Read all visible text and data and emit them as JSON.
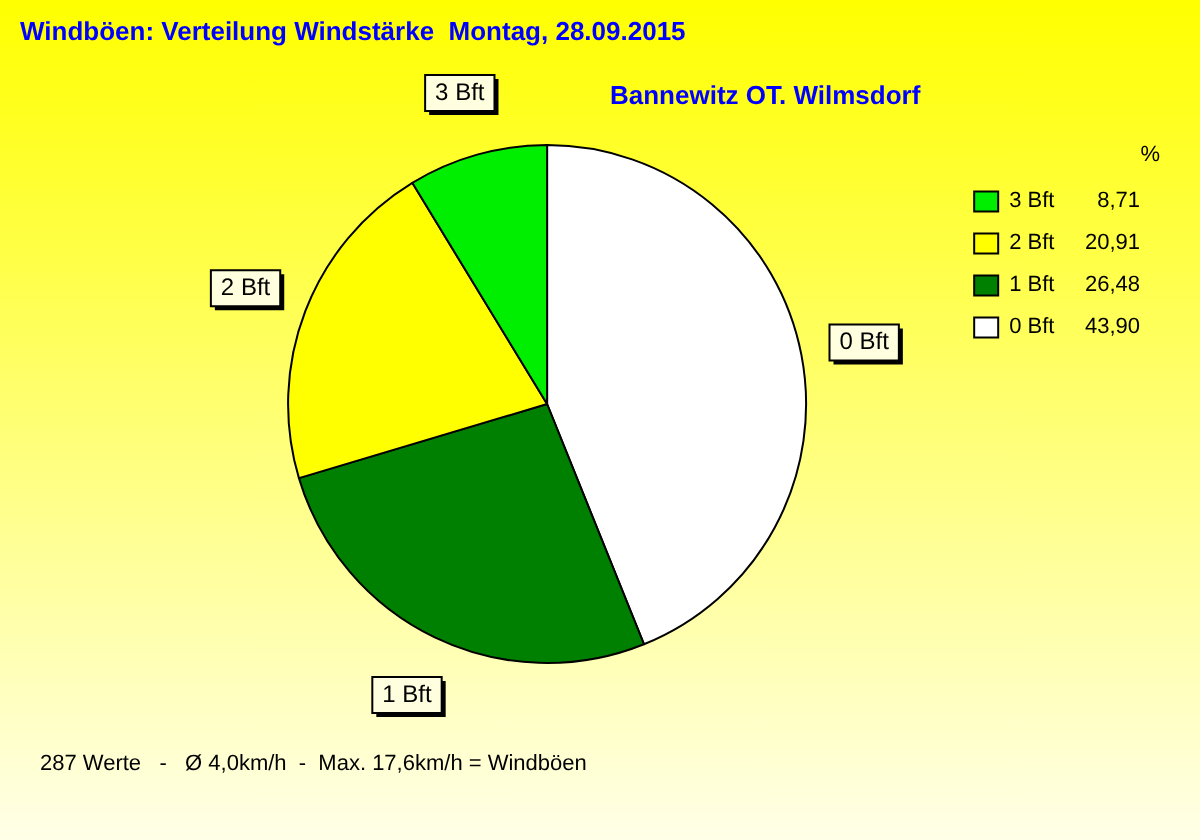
{
  "chart_data": {
    "type": "pie",
    "title": "Windböen: Verteilung Windstärke  Montag, 28.09.2015",
    "subtitle": "Bannewitz OT. Wilmsdorf",
    "categories": [
      "0 Bft",
      "1 Bft",
      "2 Bft",
      "3 Bft"
    ],
    "values": [
      43.9,
      26.48,
      20.91,
      8.71
    ],
    "value_labels": [
      "43,90",
      "26,48",
      "20,91",
      "8,71"
    ],
    "colors": [
      "#ffffff",
      "#008000",
      "#ffff00",
      "#00ee00"
    ],
    "legend": "top right",
    "legend_title": "%",
    "annotations": [
      "287 Werte   -   Ø 4,0km/h  -  Max. 17,6km/h = Windböen"
    ]
  }
}
